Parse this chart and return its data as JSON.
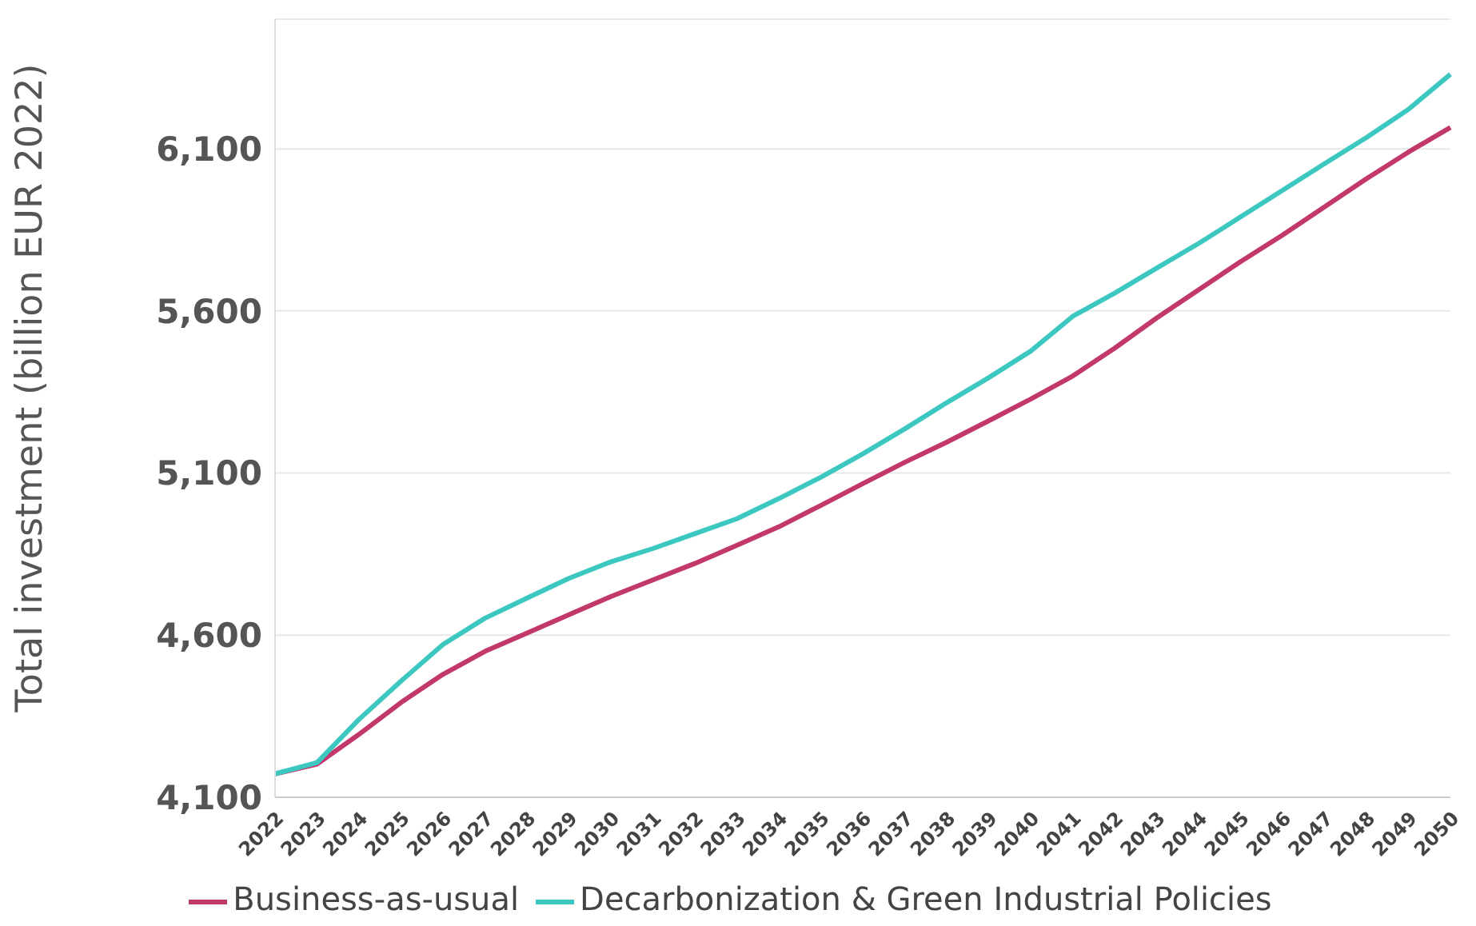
{
  "chart_data": {
    "type": "line",
    "ylabel": "Total investment (billion EUR 2022)",
    "categories": [
      "2022",
      "2023",
      "2024",
      "2025",
      "2026",
      "2027",
      "2028",
      "2029",
      "2030",
      "2031",
      "2032",
      "2033",
      "2034",
      "2035",
      "2036",
      "2037",
      "2038",
      "2039",
      "2040",
      "2041",
      "2042",
      "2043",
      "2044",
      "2045",
      "2046",
      "2047",
      "2048",
      "2049",
      "2050"
    ],
    "series": [
      {
        "name": "Business-as-usual",
        "color": "#c2386b",
        "values": [
          4172,
          4202,
          4294,
          4392,
          4479,
          4550,
          4606,
          4663,
          4719,
          4770,
          4821,
          4877,
          4934,
          5000,
          5067,
          5133,
          5195,
          5261,
          5328,
          5399,
          5485,
          5578,
          5665,
          5752,
          5834,
          5921,
          6008,
          6090,
          6166
        ]
      },
      {
        "name": "Decarbonization & Green Industrial Policies",
        "color": "#3cc8c0",
        "values": [
          4172,
          4207,
          4340,
          4458,
          4571,
          4652,
          4714,
          4775,
          4826,
          4867,
          4913,
          4959,
          5021,
          5087,
          5159,
          5236,
          5317,
          5394,
          5476,
          5583,
          5655,
          5732,
          5808,
          5890,
          5972,
          6054,
          6135,
          6222,
          6330
        ]
      }
    ],
    "ylim": [
      4100,
      6500
    ],
    "yticks": [
      {
        "value": 4100,
        "label": "4,100"
      },
      {
        "value": 4600,
        "label": "4,600"
      },
      {
        "value": 5100,
        "label": "5,100"
      },
      {
        "value": 5600,
        "label": "5,600"
      },
      {
        "value": 6100,
        "label": "6,100"
      }
    ],
    "grid": "y",
    "legend": "bottom",
    "marker": "none",
    "line_style": "solid"
  }
}
